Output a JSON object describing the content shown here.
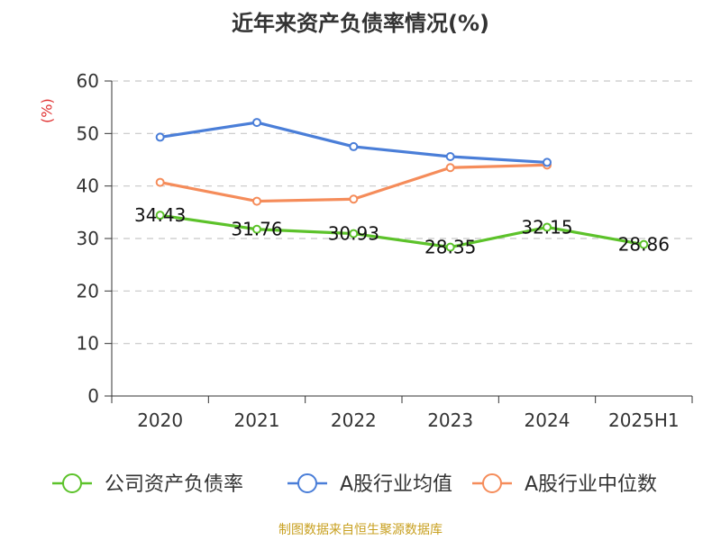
{
  "chart_data": {
    "type": "line",
    "title": "近年来资产负债率情况(%)",
    "ylabel": "(%)",
    "xlabel": "",
    "categories": [
      "2020",
      "2021",
      "2022",
      "2023",
      "2024",
      "2025H1"
    ],
    "ylim": [
      0,
      60
    ],
    "yticks": [
      0,
      10,
      20,
      30,
      40,
      50,
      60
    ],
    "grid": true,
    "legend_position": "bottom",
    "series": [
      {
        "name": "公司资产负债率",
        "color": "#5cc22a",
        "values": [
          34.43,
          31.76,
          30.93,
          28.35,
          32.15,
          28.86
        ],
        "labels": [
          "34.43",
          "31.76",
          "30.93",
          "28.35",
          "32.15",
          "28.86"
        ]
      },
      {
        "name": "A股行业均值",
        "color": "#4a7ed8",
        "values": [
          49.3,
          52.1,
          47.5,
          45.6,
          44.5,
          null
        ]
      },
      {
        "name": "A股行业中位数",
        "color": "#f58c5a",
        "values": [
          40.7,
          37.1,
          37.5,
          43.5,
          44.0,
          null
        ]
      }
    ],
    "source": "制图数据来自恒生聚源数据库"
  }
}
